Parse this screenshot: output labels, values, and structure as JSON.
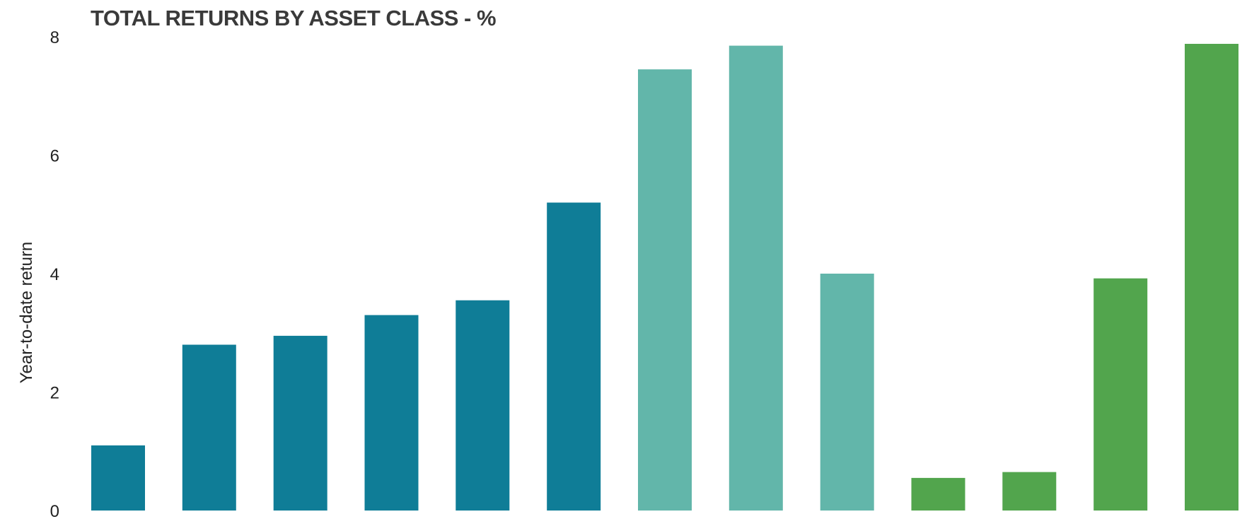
{
  "chart_data": {
    "type": "bar",
    "title": "TOTAL RETURNS BY ASSET CLASS - %",
    "ylabel": "Year-to-date  return",
    "xlabel": "",
    "ylim": [
      0,
      8
    ],
    "yticks": [
      "0",
      "2",
      "4",
      "6",
      "8"
    ],
    "grid": false,
    "values": [
      1.1,
      2.8,
      2.95,
      3.3,
      3.55,
      5.2,
      7.45,
      7.85,
      4.0,
      0.55,
      0.65,
      3.92,
      7.88
    ],
    "bar_colors": [
      "#0f7d97",
      "#0f7d97",
      "#0f7d97",
      "#0f7d97",
      "#0f7d97",
      "#0f7d97",
      "#62b6aa",
      "#62b6aa",
      "#62b6aa",
      "#52a54d",
      "#52a54d",
      "#52a54d",
      "#52a54d"
    ]
  }
}
